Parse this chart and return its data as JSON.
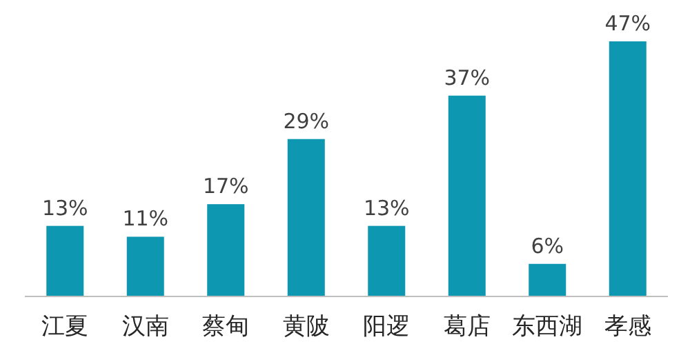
{
  "chart_data": {
    "type": "bar",
    "categories": [
      "江夏",
      "汉南",
      "蔡甸",
      "黄陂",
      "阳逻",
      "葛店",
      "东西湖",
      "孝感"
    ],
    "values": [
      13,
      11,
      17,
      29,
      13,
      37,
      6,
      47
    ],
    "value_labels": [
      "13%",
      "11%",
      "17%",
      "29%",
      "13%",
      "37%",
      "6%",
      "47%"
    ],
    "color": "#0e97b1"
  }
}
